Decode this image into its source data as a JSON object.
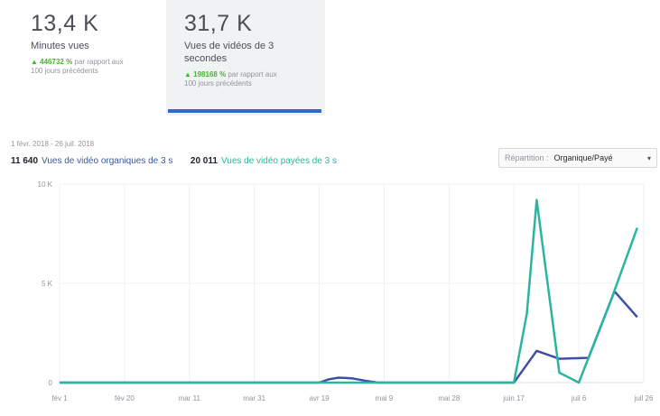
{
  "metrics": {
    "minutes": {
      "value": "13,4 K",
      "label": "Minutes vues",
      "change": "446732 %",
      "change_note": "par rapport aux",
      "note2": "100 jours précédents"
    },
    "views": {
      "value": "31,7 K",
      "label": "Vues de vidéos de 3 secondes",
      "change": "198168 %",
      "change_note": "par rapport aux",
      "note2": "100 jours précédents"
    }
  },
  "date_range": "1 févr. 2018 - 26 juil. 2018",
  "legend": {
    "organic_count": "11 640",
    "organic_label": "Vues de vidéo organiques de 3 s",
    "paid_count": "20 011",
    "paid_label": "Vues de vidéo payées de 3 s"
  },
  "dropdown": {
    "prefix": "Répartition :",
    "value": "Organique/Payé",
    "caret": "▾"
  },
  "colors": {
    "organic": "#3f4fa8",
    "paid": "#2ab5a0",
    "accent": "#2d6bd0",
    "positive": "#42b72a"
  },
  "chart_data": {
    "type": "line",
    "x": [
      "fév 1",
      "fév 20",
      "mar 11",
      "mar 31",
      "avr 19",
      "mai 9",
      "mai 28",
      "juin 17",
      "juil 6",
      "juil 26"
    ],
    "y_ticks": [
      "0",
      "5 K",
      "10 K"
    ],
    "ylim": [
      0,
      10000
    ],
    "grid": true,
    "series": [
      {
        "name": "Vues de vidéo organiques de 3 s",
        "points": [
          [
            0,
            0
          ],
          [
            0.5,
            0
          ],
          [
            1,
            0
          ],
          [
            1.5,
            0
          ],
          [
            2,
            0
          ],
          [
            2.5,
            0
          ],
          [
            3,
            0
          ],
          [
            3.5,
            0
          ],
          [
            4,
            0
          ],
          [
            4.15,
            170
          ],
          [
            4.3,
            250
          ],
          [
            4.5,
            220
          ],
          [
            4.7,
            100
          ],
          [
            4.9,
            0
          ],
          [
            5.5,
            0
          ],
          [
            6,
            0
          ],
          [
            6.5,
            0
          ],
          [
            7,
            0
          ],
          [
            7.35,
            1600
          ],
          [
            7.7,
            1200
          ],
          [
            8.15,
            1250
          ],
          [
            8.55,
            4600
          ],
          [
            8.9,
            3300
          ]
        ]
      },
      {
        "name": "Vues de vidéo payées de 3 s",
        "points": [
          [
            0,
            0
          ],
          [
            0.5,
            0
          ],
          [
            1,
            0
          ],
          [
            1.5,
            0
          ],
          [
            2,
            0
          ],
          [
            2.5,
            0
          ],
          [
            3,
            0
          ],
          [
            3.5,
            0
          ],
          [
            4,
            0
          ],
          [
            4.5,
            0
          ],
          [
            5,
            0
          ],
          [
            5.5,
            0
          ],
          [
            6,
            0
          ],
          [
            6.5,
            0
          ],
          [
            7,
            0
          ],
          [
            7.2,
            3500
          ],
          [
            7.35,
            9200
          ],
          [
            7.7,
            500
          ],
          [
            8.0,
            0
          ],
          [
            8.5,
            4200
          ],
          [
            8.9,
            7800
          ]
        ]
      }
    ]
  }
}
